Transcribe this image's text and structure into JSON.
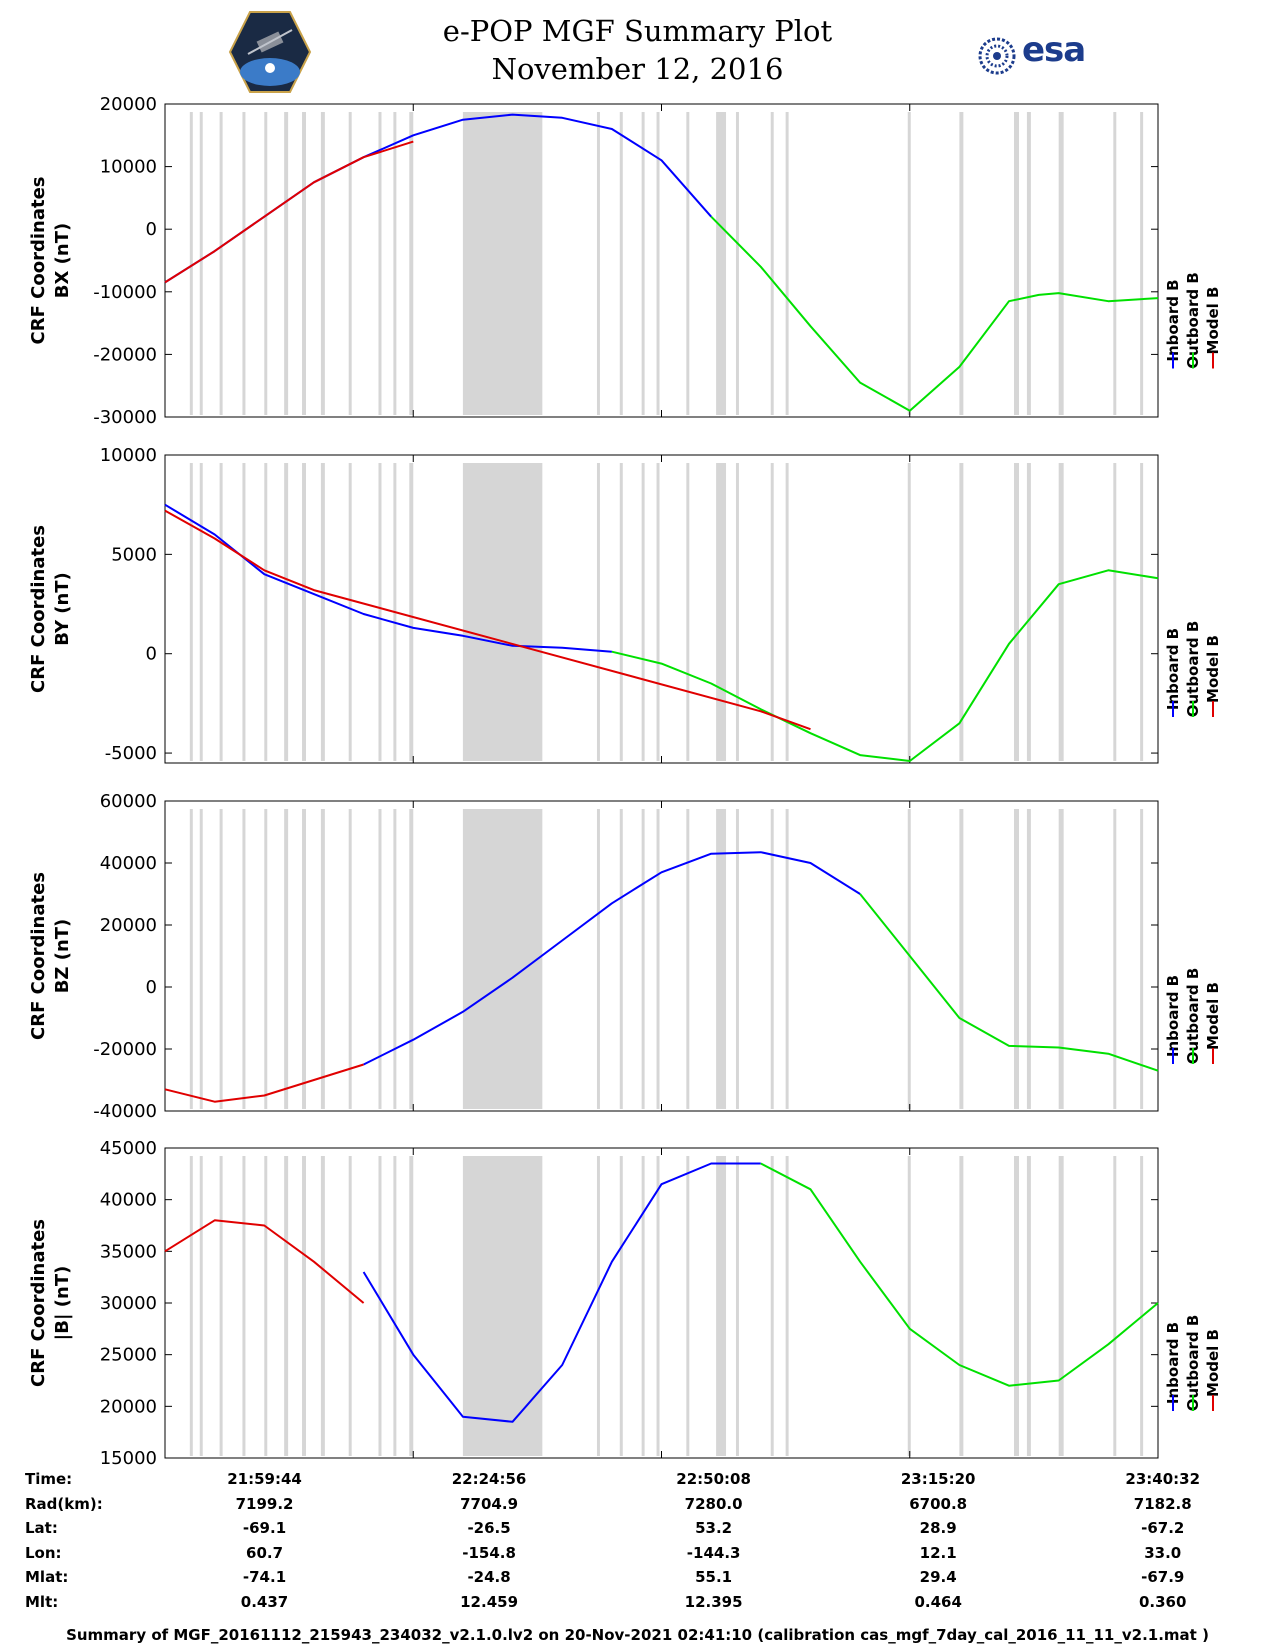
{
  "header": {
    "title_line1": "e-POP MGF Summary Plot",
    "title_line2": "November 12, 2016",
    "logo_left": "cassiope-mission-logo",
    "logo_right": "esa-logo",
    "logo_right_text": "esa"
  },
  "chart_data": [
    {
      "type": "line",
      "ylabel": [
        "CRF Coordinates",
        "BX (nT)"
      ],
      "ylim": [
        -30000,
        20000
      ],
      "yticks": [
        -30000,
        -20000,
        -10000,
        0,
        10000,
        20000
      ],
      "legend": [
        "Inboard B",
        "Outboard B",
        "Model B"
      ],
      "legend_placement": "right",
      "series": [
        {
          "name": "Inboard B",
          "color": "#0000ff",
          "x": [
            0,
            5,
            10,
            15,
            20,
            25,
            30,
            35,
            40,
            45,
            50,
            55
          ],
          "y": [
            -8500,
            -3500,
            2000,
            7500,
            11500,
            15000,
            17500,
            18300,
            17800,
            16000,
            11000,
            2000
          ]
        },
        {
          "name": "Outboard B",
          "color": "#00e000",
          "x": [
            55,
            60,
            65,
            70,
            75,
            80,
            85,
            88,
            90,
            95,
            100
          ],
          "y": [
            2000,
            -6000,
            -15500,
            -24500,
            -29000,
            -22000,
            -11500,
            -10500,
            -10200,
            -11500,
            -11000
          ]
        },
        {
          "name": "Model B",
          "color": "#e00000",
          "x": [
            0,
            5,
            10,
            15,
            20,
            25
          ],
          "y": [
            -8500,
            -3500,
            2000,
            7500,
            11500,
            14000
          ]
        }
      ]
    },
    {
      "type": "line",
      "ylabel": [
        "CRF Coordinates",
        "BY (nT)"
      ],
      "ylim": [
        -5500,
        10000
      ],
      "yticks": [
        -5000,
        0,
        5000,
        10000
      ],
      "legend": [
        "Inboard B",
        "Outboard B",
        "Model B"
      ],
      "legend_placement": "right",
      "series": [
        {
          "name": "Inboard B",
          "color": "#0000ff",
          "x": [
            0,
            5,
            10,
            15,
            20,
            25,
            30,
            35,
            40,
            45
          ],
          "y": [
            7500,
            6000,
            4000,
            3000,
            2000,
            1300,
            900,
            400,
            300,
            100
          ]
        },
        {
          "name": "Outboard B",
          "color": "#00e000",
          "x": [
            45,
            50,
            55,
            60,
            65,
            70,
            75,
            80,
            85,
            90,
            95,
            100
          ],
          "y": [
            100,
            -500,
            -1500,
            -2800,
            -4000,
            -5100,
            -5400,
            -3500,
            500,
            3500,
            4200,
            3800
          ]
        },
        {
          "name": "Model B",
          "color": "#e00000",
          "x": [
            0,
            5,
            10,
            15,
            60,
            65
          ],
          "y": [
            7200,
            5800,
            4200,
            3200,
            -2900,
            -3800
          ]
        }
      ]
    },
    {
      "type": "line",
      "ylabel": [
        "CRF Coordinates",
        "BZ (nT)"
      ],
      "ylim": [
        -40000,
        60000
      ],
      "yticks": [
        -40000,
        -20000,
        0,
        20000,
        40000,
        60000
      ],
      "legend": [
        "Inboard B",
        "Outboard B",
        "Model B"
      ],
      "legend_placement": "right",
      "series": [
        {
          "name": "Inboard B",
          "color": "#0000ff",
          "x": [
            20,
            25,
            30,
            35,
            40,
            45,
            50,
            55,
            60,
            65,
            70
          ],
          "y": [
            -25000,
            -17000,
            -8000,
            3000,
            15000,
            27000,
            37000,
            43000,
            43500,
            40000,
            30000
          ]
        },
        {
          "name": "Outboard B",
          "color": "#00e000",
          "x": [
            70,
            75,
            80,
            85,
            90,
            95,
            100
          ],
          "y": [
            30000,
            10000,
            -10000,
            -19000,
            -19500,
            -21500,
            -27000
          ]
        },
        {
          "name": "Model B",
          "color": "#e00000",
          "x": [
            0,
            5,
            10,
            15,
            20
          ],
          "y": [
            -33000,
            -37000,
            -35000,
            -30000,
            -25000
          ]
        }
      ]
    },
    {
      "type": "line",
      "ylabel": [
        "CRF Coordinates",
        "|B| (nT)"
      ],
      "ylim": [
        15000,
        45000
      ],
      "yticks": [
        15000,
        20000,
        25000,
        30000,
        35000,
        40000,
        45000
      ],
      "legend": [
        "Inboard B",
        "Outboard B",
        "Model B"
      ],
      "legend_placement": "right",
      "series": [
        {
          "name": "Inboard B",
          "color": "#0000ff",
          "x": [
            20,
            25,
            30,
            35,
            40,
            45,
            50,
            55,
            60
          ],
          "y": [
            33000,
            25000,
            19000,
            18500,
            24000,
            34000,
            41500,
            43500,
            43500
          ]
        },
        {
          "name": "Outboard B",
          "color": "#00e000",
          "x": [
            60,
            65,
            70,
            75,
            80,
            85,
            90,
            95,
            100
          ],
          "y": [
            43500,
            41000,
            34000,
            27500,
            24000,
            22000,
            22500,
            26000,
            30000
          ]
        },
        {
          "name": "Model B",
          "color": "#e00000",
          "x": [
            0,
            5,
            10,
            15,
            20
          ],
          "y": [
            35000,
            38000,
            37500,
            34000,
            30000
          ]
        }
      ]
    }
  ],
  "x_axis": {
    "xlim": [
      0,
      100
    ],
    "tick_positions": [
      0,
      25,
      50,
      75,
      100
    ],
    "gray_bands": [
      [
        2.5,
        2.8
      ],
      [
        3.5,
        3.8
      ],
      [
        5.5,
        5.8
      ],
      [
        7.8,
        8.1
      ],
      [
        10,
        10.3
      ],
      [
        12,
        12.4
      ],
      [
        13.8,
        14.2
      ],
      [
        15.7,
        16.1
      ],
      [
        18.5,
        18.8
      ],
      [
        21.5,
        21.8
      ],
      [
        23,
        23.3
      ],
      [
        24.6,
        25
      ],
      [
        30,
        38
      ],
      [
        43.5,
        43.8
      ],
      [
        45.8,
        46.1
      ],
      [
        48,
        48.3
      ],
      [
        49.5,
        49.8
      ],
      [
        52.5,
        52.8
      ],
      [
        55.5,
        56.5
      ],
      [
        57.5,
        57.8
      ],
      [
        61,
        61.3
      ],
      [
        62.5,
        62.8
      ],
      [
        74.8,
        75.1
      ],
      [
        80,
        80.4
      ],
      [
        85.5,
        86
      ],
      [
        86.8,
        87.2
      ],
      [
        90,
        90.5
      ],
      [
        95.5,
        95.8
      ],
      [
        98.2,
        98.5
      ]
    ]
  },
  "info": {
    "rows": [
      {
        "label": "Time:",
        "values": [
          "21:59:44",
          "22:24:56",
          "22:50:08",
          "23:15:20",
          "23:40:32"
        ]
      },
      {
        "label": "Rad(km):",
        "values": [
          "7199.2",
          "7704.9",
          "7280.0",
          "6700.8",
          "7182.8"
        ]
      },
      {
        "label": "Lat:",
        "values": [
          "-69.1",
          "-26.5",
          "53.2",
          "28.9",
          "-67.2"
        ]
      },
      {
        "label": "Lon:",
        "values": [
          "60.7",
          "-154.8",
          "-144.3",
          "12.1",
          "33.0"
        ]
      },
      {
        "label": "Mlat:",
        "values": [
          "-74.1",
          "-24.8",
          "55.1",
          "29.4",
          "-67.9"
        ]
      },
      {
        "label": "Mlt:",
        "values": [
          "0.437",
          "12.459",
          "12.395",
          "0.464",
          "0.360"
        ]
      }
    ]
  },
  "footer": "Summary of MGF_20161112_215943_234032_v2.1.0.lv2 on 20-Nov-2021 02:41:10 (calibration cas_mgf_7day_cal_2016_11_11_v2.1.mat )"
}
